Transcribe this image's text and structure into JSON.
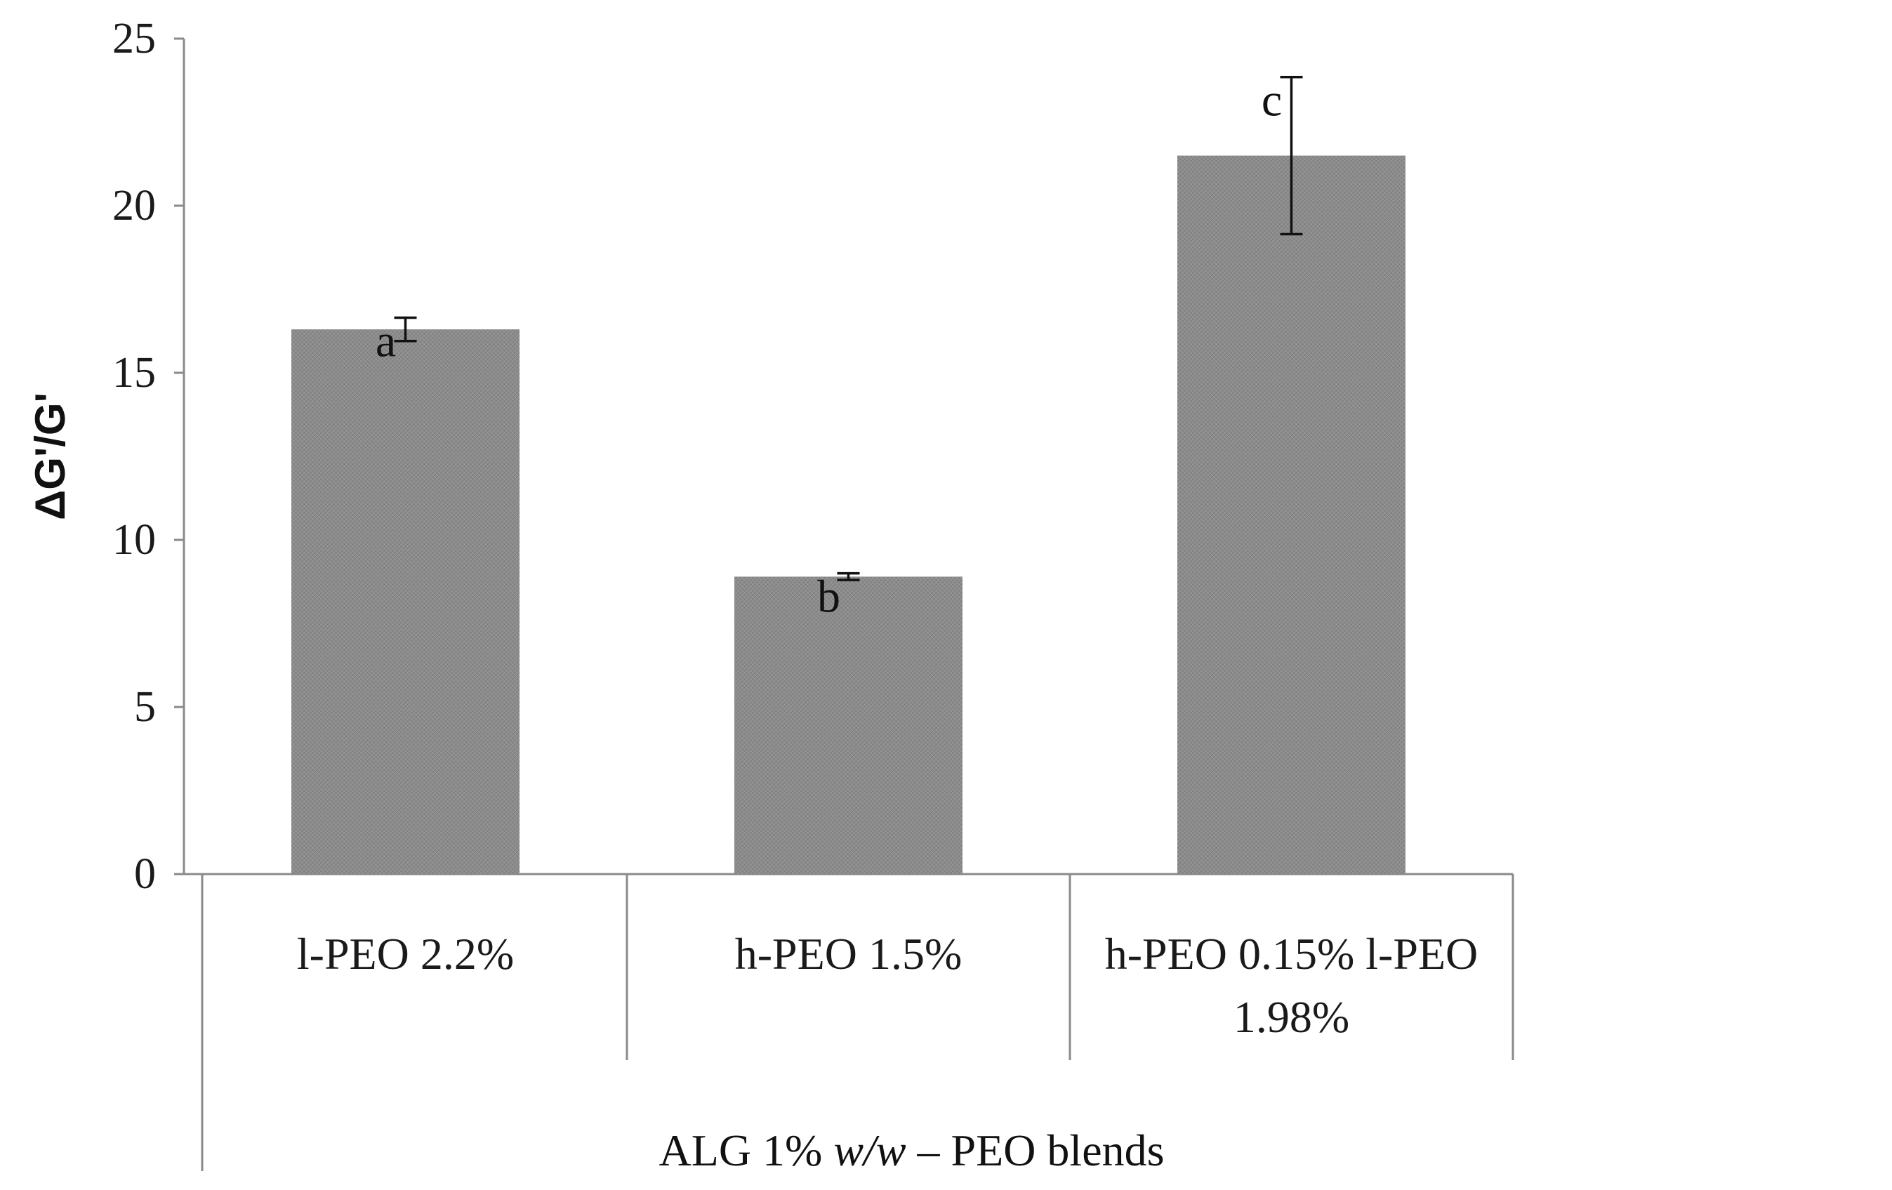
{
  "chart_data": {
    "type": "bar",
    "title": "",
    "ylabel": "ΔG'/G'",
    "xlabel": {
      "prefix": "ALG 1% ",
      "italic": "w/w",
      "suffix": " – PEO blends"
    },
    "ylim": [
      0,
      25
    ],
    "yticks": [
      0,
      5,
      10,
      15,
      20,
      25
    ],
    "categories": [
      [
        "l-PEO 2.2%"
      ],
      [
        "h-PEO 1.5%"
      ],
      [
        "h-PEO 0.15% l-PEO",
        "1.98%"
      ]
    ],
    "values": [
      16.3,
      8.9,
      21.5
    ],
    "errors": [
      0.35,
      0.1,
      2.35
    ],
    "significance_labels": [
      "a",
      "b",
      "c"
    ],
    "bar_color": "#8c8c8c",
    "grid": false
  }
}
